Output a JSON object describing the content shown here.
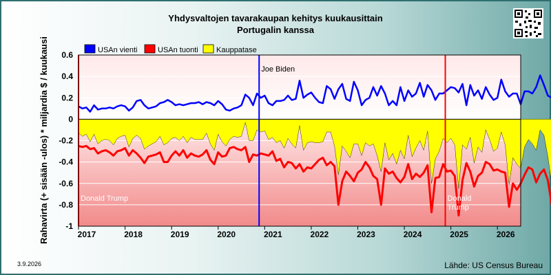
{
  "chart_data": {
    "type": "line",
    "title": "Yhdysvaltojen tavarakaupan kehitys kuukausittain",
    "subtitle": "Portugalin kanssa",
    "ylabel": "Rahavirta (+ sisään -ulos)  * miljardia $ / kuukausi",
    "ylim": [
      -1,
      0.6
    ],
    "yticks": [
      0.6,
      0.4,
      0.2,
      0,
      -0.2,
      -0.4,
      -0.6,
      -0.8,
      -1
    ],
    "ytick_labels": [
      "0.6",
      "0.4",
      "0.2",
      "0",
      "-0.2",
      "-0.4",
      "-0.6",
      "-0.8",
      "-1"
    ],
    "xlim": [
      2017.0,
      2026.5
    ],
    "xticks": [
      2017,
      2018,
      2019,
      2020,
      2021,
      2022,
      2023,
      2024,
      2025,
      2026
    ],
    "xtick_labels": [
      "2017",
      "2018",
      "2019",
      "2020",
      "2021",
      "2022",
      "2023",
      "2024",
      "2025",
      "2026"
    ],
    "legend": {
      "position": "top-left"
    },
    "series": [
      {
        "name": "USAn vienti",
        "color": "#0000ff",
        "values": [
          0.12,
          0.1,
          0.11,
          0.07,
          0.13,
          0.09,
          0.1,
          0.1,
          0.11,
          0.1,
          0.12,
          0.13,
          0.12,
          0.08,
          0.11,
          0.17,
          0.18,
          0.13,
          0.1,
          0.11,
          0.12,
          0.15,
          0.16,
          0.18,
          0.16,
          0.13,
          0.14,
          0.13,
          0.14,
          0.15,
          0.15,
          0.16,
          0.14,
          0.16,
          0.15,
          0.13,
          0.17,
          0.14,
          0.09,
          0.08,
          0.1,
          0.11,
          0.13,
          0.23,
          0.2,
          0.13,
          0.24,
          0.2,
          0.22,
          0.15,
          0.13,
          0.17,
          0.17,
          0.18,
          0.22,
          0.18,
          0.19,
          0.36,
          0.2,
          0.23,
          0.25,
          0.2,
          0.16,
          0.15,
          0.31,
          0.28,
          0.19,
          0.28,
          0.33,
          0.19,
          0.17,
          0.35,
          0.27,
          0.13,
          0.18,
          0.2,
          0.3,
          0.22,
          0.31,
          0.24,
          0.13,
          0.17,
          0.13,
          0.3,
          0.17,
          0.27,
          0.21,
          0.24,
          0.34,
          0.21,
          0.32,
          0.27,
          0.18,
          0.24,
          0.24,
          0.27,
          0.3,
          0.29,
          0.25,
          0.33,
          0.13,
          0.32,
          0.22,
          0.27,
          0.19,
          0.3,
          0.23,
          0.18,
          0.2,
          0.37,
          0.26,
          0.21,
          0.24,
          0.24,
          0.14,
          0.26,
          0.26,
          0.24,
          0.3,
          0.41,
          0.32,
          0.22,
          0.2
        ]
      },
      {
        "name": "USAn tuonti",
        "color": "#ff0000",
        "values": [
          -0.25,
          -0.26,
          -0.25,
          -0.28,
          -0.27,
          -0.32,
          -0.3,
          -0.29,
          -0.31,
          -0.34,
          -0.3,
          -0.29,
          -0.27,
          -0.34,
          -0.29,
          -0.32,
          -0.36,
          -0.41,
          -0.35,
          -0.34,
          -0.33,
          -0.31,
          -0.4,
          -0.4,
          -0.34,
          -0.3,
          -0.34,
          -0.29,
          -0.36,
          -0.32,
          -0.34,
          -0.35,
          -0.33,
          -0.29,
          -0.38,
          -0.42,
          -0.31,
          -0.35,
          -0.34,
          -0.27,
          -0.26,
          -0.28,
          -0.29,
          -0.26,
          -0.4,
          -0.33,
          -0.34,
          -0.32,
          -0.33,
          -0.34,
          -0.3,
          -0.39,
          -0.37,
          -0.45,
          -0.4,
          -0.41,
          -0.46,
          -0.42,
          -0.49,
          -0.45,
          -0.46,
          -0.42,
          -0.38,
          -0.36,
          -0.43,
          -0.4,
          -0.44,
          -0.8,
          -0.58,
          -0.49,
          -0.53,
          -0.58,
          -0.5,
          -0.47,
          -0.4,
          -0.45,
          -0.53,
          -0.56,
          -0.8,
          -0.46,
          -0.51,
          -0.49,
          -0.55,
          -0.59,
          -0.54,
          -0.42,
          -0.56,
          -0.51,
          -0.54,
          -0.5,
          -0.43,
          -0.87,
          -0.55,
          -0.54,
          -0.42,
          -0.49,
          -0.48,
          -0.53,
          -0.9,
          -0.57,
          -0.41,
          -0.49,
          -0.63,
          -0.53,
          -0.5,
          -0.4,
          -0.42,
          -0.48,
          -0.47,
          -0.49,
          -0.5,
          -0.82,
          -0.6,
          -0.66,
          -0.6,
          -0.52,
          -0.45,
          -0.47,
          -0.59,
          -0.51,
          -0.47,
          -0.57,
          -0.8,
          -0.62,
          -0.47
        ]
      },
      {
        "name": "Kauppatase",
        "color": "#ffff00",
        "values": [
          -0.13,
          -0.16,
          -0.14,
          -0.21,
          -0.14,
          -0.23,
          -0.2,
          -0.19,
          -0.2,
          -0.24,
          -0.18,
          -0.16,
          -0.15,
          -0.26,
          -0.18,
          -0.15,
          -0.18,
          -0.28,
          -0.25,
          -0.23,
          -0.21,
          -0.16,
          -0.24,
          -0.22,
          -0.18,
          -0.17,
          -0.2,
          -0.16,
          -0.22,
          -0.17,
          -0.19,
          -0.19,
          -0.19,
          -0.13,
          -0.23,
          -0.29,
          -0.14,
          -0.21,
          -0.25,
          -0.19,
          -0.16,
          -0.17,
          -0.16,
          -0.03,
          -0.2,
          -0.2,
          -0.1,
          -0.12,
          -0.11,
          -0.19,
          -0.17,
          -0.22,
          -0.2,
          -0.27,
          -0.18,
          -0.23,
          -0.27,
          -0.06,
          -0.29,
          -0.22,
          -0.21,
          -0.22,
          -0.22,
          -0.21,
          -0.12,
          -0.12,
          -0.25,
          -0.52,
          -0.25,
          -0.3,
          -0.36,
          -0.23,
          -0.23,
          -0.34,
          -0.22,
          -0.25,
          -0.23,
          -0.34,
          -0.49,
          -0.22,
          -0.38,
          -0.32,
          -0.42,
          -0.29,
          -0.37,
          -0.15,
          -0.35,
          -0.27,
          -0.2,
          -0.29,
          -0.11,
          -0.6,
          -0.37,
          -0.3,
          -0.18,
          -0.22,
          -0.18,
          -0.24,
          -0.65,
          -0.24,
          -0.28,
          -0.17,
          -0.41,
          -0.26,
          -0.31,
          -0.1,
          -0.19,
          -0.3,
          -0.27,
          -0.12,
          -0.24,
          -0.61,
          -0.36,
          -0.42,
          -0.46,
          -0.26,
          -0.19,
          -0.23,
          -0.29,
          -0.1,
          -0.15,
          -0.35,
          -0.6,
          -0.4,
          -0.27
        ]
      }
    ],
    "annotations": [
      {
        "label": "Joe Biden",
        "x": 2020.88,
        "color": "#0000ff"
      },
      {
        "label": "Donald Trump",
        "x": 2017.0,
        "color": "#ff0000"
      },
      {
        "label": "Donald\nTrump",
        "x": 2024.88,
        "color": "#ff0000"
      }
    ]
  },
  "footer": {
    "date": "3.9.2026",
    "source": "Lähde: US Census Bureau"
  },
  "icons": {
    "qr": "qr-code-icon"
  }
}
